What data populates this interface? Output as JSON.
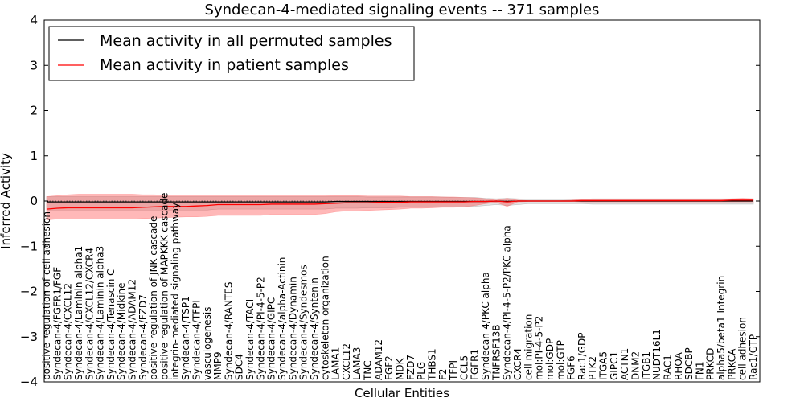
{
  "chart_data": {
    "type": "line",
    "title": "Syndecan-4-mediated signaling events -- 371 samples",
    "xlabel": "Cellular Entities",
    "ylabel": "Inferred Activity",
    "ylim": [
      -4,
      4
    ],
    "yticks": [
      -4,
      -3,
      -2,
      -1,
      0,
      1,
      2,
      3,
      4
    ],
    "legend_position": "top-left",
    "categories": [
      "positive regulation of cell adhesion",
      "Syndecan-4/FGFR1/FGF",
      "Syndecan-4/CXCL12",
      "Syndecan-4/Laminin alpha1",
      "Syndecan-4/CXCL12/CXCR4",
      "Syndecan-4/Laminin alpha3",
      "Syndecan-4/Tenascin C",
      "Syndecan-4/Midkine",
      "Syndecan-4/ADAM12",
      "Syndecan-4/FZD7",
      "positive regulation of JNK cascade",
      "positive regulation of MAPKKK cascade",
      "integrin-mediated signaling pathway",
      "Syndecan-4/TSP1",
      "Syndecan-4/TFPI",
      "vasculogenesis",
      "MMP9",
      "Syndecan-4/RANTES",
      "SDC4",
      "Syndecan-4/TACI",
      "Syndecan-4/PI-4-5-P2",
      "Syndecan-4/GIPC",
      "Syndecan-4/alpha-Actinin",
      "Syndecan-4/Dynamin",
      "Syndecan-4/Syndesmos",
      "Syndecan-4/Syntenin",
      "cytoskeleton organization",
      "LAMA1",
      "CXCL12",
      "LAMA3",
      "TNC",
      "ADAM12",
      "FGF2",
      "MDK",
      "FZD7",
      "PLG",
      "THBS1",
      "F2",
      "TFPI",
      "CCL5",
      "FGFR1",
      "Syndecan-4/PKC alpha",
      "TNFRSF13B",
      "Syndecan-4/PI-4-5-P2/PKC alpha",
      "CXCR4",
      "cell migration",
      "mol:PI-4-5-P2",
      "mol:GDP",
      "mol:GTP",
      "FGF6",
      "Rac1/GDP",
      "PTK2",
      "ITGA5",
      "GIPC1",
      "ACTN1",
      "DNM2",
      "ITGB1",
      "NUDT16L1",
      "RAC1",
      "RHOA",
      "SDCBP",
      "FN1",
      "PRKCD",
      "alpha5/beta1 Integrin",
      "PRKCA",
      "cell adhesion",
      "Rac1/GTP"
    ],
    "series": [
      {
        "name": "Mean activity in all permuted samples",
        "color": "#000000",
        "values": [
          -0.02,
          -0.02,
          -0.02,
          -0.02,
          -0.02,
          -0.02,
          -0.02,
          -0.02,
          -0.02,
          -0.02,
          -0.02,
          -0.02,
          -0.02,
          -0.02,
          -0.02,
          -0.02,
          -0.02,
          -0.02,
          -0.02,
          -0.02,
          -0.02,
          -0.02,
          -0.02,
          -0.02,
          -0.02,
          -0.02,
          -0.02,
          -0.01,
          -0.01,
          -0.01,
          -0.01,
          -0.01,
          -0.01,
          -0.01,
          -0.01,
          -0.01,
          -0.01,
          -0.01,
          -0.01,
          -0.01,
          -0.01,
          -0.01,
          0.0,
          -0.01,
          0.0,
          0.0,
          0.0,
          0.0,
          0.0,
          0.0,
          0.0,
          0.0,
          0.0,
          0.0,
          0.0,
          0.0,
          0.0,
          0.0,
          0.0,
          0.0,
          0.0,
          0.0,
          0.0,
          0.0,
          0.0,
          0.0,
          0.0
        ],
        "band_low": [
          -0.2,
          -0.2,
          -0.2,
          -0.2,
          -0.2,
          -0.2,
          -0.2,
          -0.2,
          -0.2,
          -0.2,
          -0.2,
          -0.2,
          -0.2,
          -0.2,
          -0.2,
          -0.2,
          -0.18,
          -0.18,
          -0.18,
          -0.18,
          -0.18,
          -0.18,
          -0.18,
          -0.18,
          -0.18,
          -0.18,
          -0.18,
          -0.16,
          -0.16,
          -0.16,
          -0.15,
          -0.15,
          -0.15,
          -0.14,
          -0.14,
          -0.14,
          -0.14,
          -0.13,
          -0.13,
          -0.13,
          -0.12,
          -0.1,
          -0.08,
          -0.1,
          -0.08,
          -0.06,
          -0.06,
          -0.06,
          -0.06,
          -0.06,
          -0.06,
          -0.07,
          -0.07,
          -0.07,
          -0.07,
          -0.07,
          -0.07,
          -0.07,
          -0.07,
          -0.07,
          -0.07,
          -0.07,
          -0.07,
          -0.07,
          -0.07,
          -0.07,
          -0.07
        ],
        "band_high": [
          0.1,
          0.1,
          0.1,
          0.1,
          0.1,
          0.1,
          0.1,
          0.1,
          0.1,
          0.1,
          0.1,
          0.1,
          0.1,
          0.1,
          0.1,
          0.1,
          0.1,
          0.1,
          0.1,
          0.1,
          0.1,
          0.1,
          0.1,
          0.1,
          0.1,
          0.1,
          0.1,
          0.1,
          0.1,
          0.1,
          0.09,
          0.09,
          0.09,
          0.09,
          0.09,
          0.09,
          0.09,
          0.09,
          0.08,
          0.08,
          0.08,
          0.06,
          0.05,
          0.06,
          0.05,
          0.04,
          0.04,
          0.04,
          0.04,
          0.04,
          0.04,
          0.05,
          0.05,
          0.05,
          0.05,
          0.05,
          0.05,
          0.05,
          0.05,
          0.05,
          0.05,
          0.05,
          0.05,
          0.05,
          0.05,
          0.05,
          0.05
        ]
      },
      {
        "name": "Mean activity in patient samples",
        "color": "#ff0000",
        "values": [
          -0.18,
          -0.16,
          -0.15,
          -0.15,
          -0.15,
          -0.15,
          -0.15,
          -0.15,
          -0.15,
          -0.14,
          -0.13,
          -0.12,
          -0.12,
          -0.12,
          -0.11,
          -0.1,
          -0.08,
          -0.08,
          -0.08,
          -0.08,
          -0.08,
          -0.07,
          -0.07,
          -0.07,
          -0.07,
          -0.07,
          -0.06,
          -0.05,
          -0.04,
          -0.04,
          -0.04,
          -0.03,
          -0.03,
          -0.03,
          -0.02,
          -0.02,
          -0.02,
          -0.02,
          -0.02,
          -0.02,
          -0.01,
          -0.01,
          0.0,
          -0.02,
          0.0,
          0.0,
          0.0,
          0.0,
          0.0,
          0.0,
          0.01,
          0.01,
          0.01,
          0.01,
          0.01,
          0.01,
          0.01,
          0.01,
          0.01,
          0.01,
          0.01,
          0.01,
          0.01,
          0.01,
          0.02,
          0.02,
          0.02
        ],
        "band_low": [
          -0.42,
          -0.4,
          -0.4,
          -0.4,
          -0.4,
          -0.4,
          -0.4,
          -0.4,
          -0.4,
          -0.39,
          -0.38,
          -0.37,
          -0.36,
          -0.35,
          -0.35,
          -0.34,
          -0.32,
          -0.32,
          -0.32,
          -0.32,
          -0.32,
          -0.3,
          -0.3,
          -0.3,
          -0.3,
          -0.3,
          -0.28,
          -0.24,
          -0.22,
          -0.22,
          -0.21,
          -0.2,
          -0.19,
          -0.18,
          -0.16,
          -0.16,
          -0.15,
          -0.14,
          -0.14,
          -0.13,
          -0.1,
          -0.06,
          -0.03,
          -0.12,
          -0.02,
          -0.01,
          -0.01,
          -0.01,
          -0.01,
          -0.01,
          -0.02,
          -0.02,
          -0.02,
          -0.02,
          -0.02,
          -0.02,
          -0.02,
          -0.02,
          -0.02,
          -0.02,
          -0.02,
          -0.02,
          -0.02,
          -0.02,
          -0.02,
          -0.02,
          -0.02
        ],
        "band_high": [
          0.1,
          0.12,
          0.14,
          0.15,
          0.15,
          0.15,
          0.15,
          0.15,
          0.15,
          0.14,
          0.14,
          0.13,
          0.13,
          0.13,
          0.13,
          0.13,
          0.13,
          0.13,
          0.13,
          0.13,
          0.13,
          0.13,
          0.13,
          0.13,
          0.13,
          0.13,
          0.13,
          0.12,
          0.12,
          0.12,
          0.11,
          0.11,
          0.11,
          0.11,
          0.1,
          0.1,
          0.1,
          0.09,
          0.09,
          0.08,
          0.07,
          0.05,
          0.02,
          0.06,
          0.02,
          0.01,
          0.01,
          0.01,
          0.01,
          0.02,
          0.04,
          0.04,
          0.04,
          0.04,
          0.04,
          0.04,
          0.04,
          0.04,
          0.04,
          0.04,
          0.04,
          0.04,
          0.04,
          0.04,
          0.05,
          0.06,
          0.05
        ]
      }
    ]
  }
}
